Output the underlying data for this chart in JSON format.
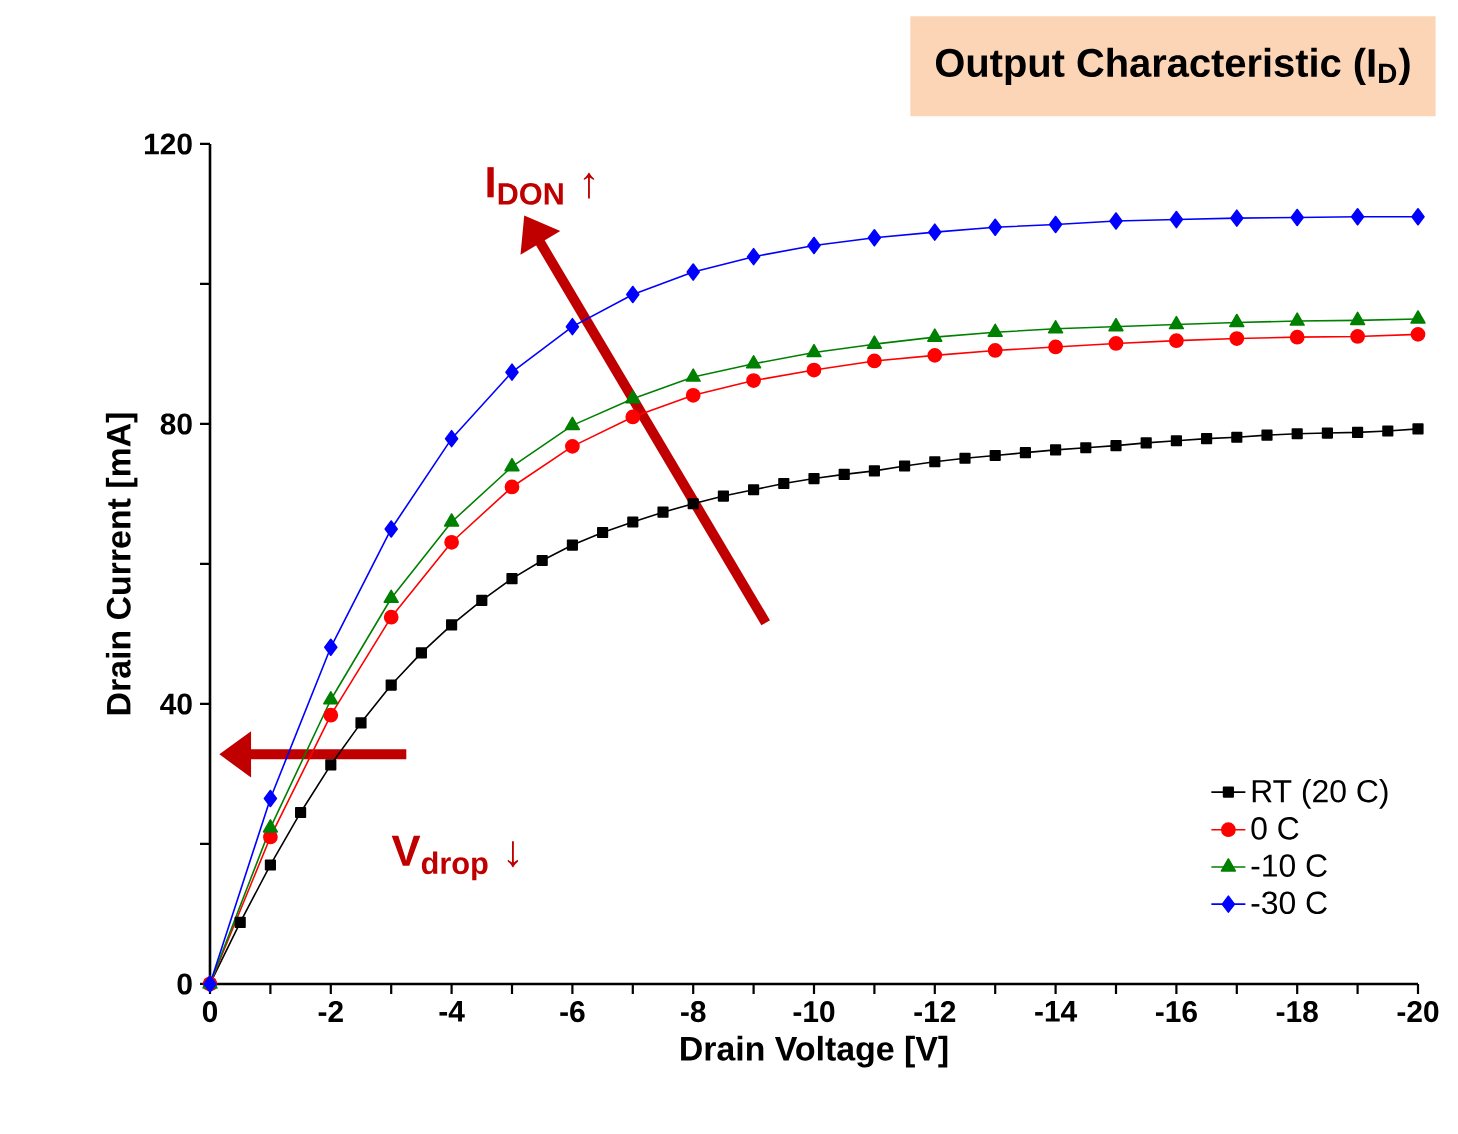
{
  "chart_data": {
    "type": "line",
    "title": "Output Characteristic (I$_{D}$)",
    "xlabel": "Drain Voltage [V]",
    "ylabel": "Drain Current [mA]",
    "xlim": [
      0,
      -20
    ],
    "ylim": [
      0,
      120
    ],
    "xticks": [
      0,
      {
        "value": -1,
        "label": null
      },
      -2,
      {
        "value": -3,
        "label": null
      },
      -4,
      {
        "value": -5,
        "label": null
      },
      -6,
      {
        "value": -7,
        "label": null
      },
      -8,
      {
        "value": -9,
        "label": null
      },
      -10,
      {
        "value": -11,
        "label": null
      },
      -12,
      {
        "value": -13,
        "label": null
      },
      -14,
      {
        "value": -15,
        "label": null
      },
      -16,
      {
        "value": -17,
        "label": null
      },
      -18,
      {
        "value": -19,
        "label": null
      },
      -20
    ],
    "yticks": [
      0,
      {
        "value": 20,
        "label": null
      },
      40,
      {
        "value": 60,
        "label": null
      },
      80,
      {
        "value": 100,
        "label": null
      },
      120
    ],
    "legend": "bottom right",
    "annotations": [
      "I$_{DON}$ ↑",
      "V$_{drop}$ ↓"
    ],
    "series": [
      {
        "name": "RT (20 C)",
        "color": "#000000",
        "marker": "square",
        "x": [
          0,
          -0.5,
          -1,
          -1.5,
          -2,
          -2.5,
          -3,
          -3.5,
          -4,
          -4.5,
          -5,
          -5.5,
          -6,
          -6.5,
          -7,
          -7.5,
          -8,
          -8.5,
          -9,
          -9.5,
          -10,
          -10.5,
          -11,
          -11.5,
          -12,
          -12.5,
          -13,
          -13.5,
          -14,
          -14.5,
          -15,
          -15.5,
          -16,
          -16.5,
          -17,
          -17.5,
          -18,
          -18.5,
          -19,
          -19.5,
          -20
        ],
        "values": [
          0,
          8.8,
          17.0,
          24.5,
          31.3,
          37.3,
          42.7,
          47.3,
          51.3,
          54.8,
          57.9,
          60.5,
          62.7,
          64.5,
          66.0,
          67.4,
          68.6,
          69.7,
          70.6,
          71.5,
          72.2,
          72.8,
          73.3,
          74.0,
          74.6,
          75.1,
          75.5,
          75.9,
          76.3,
          76.6,
          76.9,
          77.3,
          77.6,
          77.9,
          78.1,
          78.4,
          78.6,
          78.7,
          78.8,
          79.0,
          79.3
        ]
      },
      {
        "name": "0 C",
        "color": "#ff0000",
        "marker": "circle",
        "x": [
          0,
          -1,
          -2,
          -3,
          -4,
          -5,
          -6,
          -7,
          -8,
          -9,
          -10,
          -11,
          -12,
          -13,
          -14,
          -15,
          -16,
          -17,
          -18,
          -19,
          -20
        ],
        "values": [
          0,
          21.0,
          38.4,
          52.4,
          63.1,
          71.0,
          76.8,
          81.0,
          84.1,
          86.2,
          87.7,
          89.0,
          89.8,
          90.5,
          91.0,
          91.5,
          91.9,
          92.2,
          92.4,
          92.5,
          92.8
        ]
      },
      {
        "name": "-10 C",
        "color": "#008000",
        "marker": "triangle",
        "x": [
          0,
          -1,
          -2,
          -3,
          -4,
          -5,
          -6,
          -7,
          -8,
          -9,
          -10,
          -11,
          -12,
          -13,
          -14,
          -15,
          -16,
          -17,
          -18,
          -19,
          -20
        ],
        "values": [
          0,
          22.3,
          40.6,
          55.1,
          66.0,
          73.9,
          79.8,
          83.6,
          86.7,
          88.6,
          90.2,
          91.4,
          92.4,
          93.1,
          93.6,
          93.9,
          94.2,
          94.5,
          94.7,
          94.8,
          95.0
        ]
      },
      {
        "name": "-30 C",
        "color": "#0000ff",
        "marker": "diamond",
        "x": [
          0,
          -1,
          -2,
          -3,
          -4,
          -5,
          -6,
          -7,
          -8,
          -9,
          -10,
          -11,
          -12,
          -13,
          -14,
          -15,
          -16,
          -17,
          -18,
          -19,
          -20
        ],
        "values": [
          0,
          26.5,
          48.1,
          65.0,
          77.9,
          87.4,
          93.9,
          98.5,
          101.7,
          103.9,
          105.5,
          106.6,
          107.4,
          108.1,
          108.5,
          109.0,
          109.2,
          109.4,
          109.5,
          109.6,
          109.6
        ]
      }
    ]
  }
}
